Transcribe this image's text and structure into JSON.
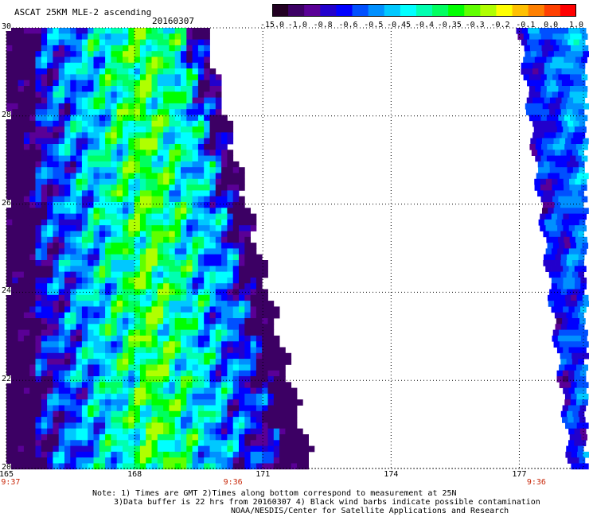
{
  "header": {
    "title": "ASCAT 25KM MLE-2 ascending",
    "date": "20160307"
  },
  "colorbar": {
    "labels": [
      "-15.0",
      "-1.0",
      "-0.8",
      "-0.6",
      "-0.5",
      "-0.45",
      "-0.4",
      "-0.35",
      "-0.3",
      "-0.2",
      "-0.1",
      "0.0",
      "1.0"
    ],
    "colors": [
      "#220022",
      "#3c0064",
      "#5a0096",
      "#2200cc",
      "#0000ff",
      "#0050ff",
      "#0090ff",
      "#00c8ff",
      "#00ffff",
      "#00ffb0",
      "#00ff60",
      "#00ff00",
      "#60ff00",
      "#b0ff00",
      "#ffff00",
      "#ffc000",
      "#ff8000",
      "#ff4000",
      "#ff0000"
    ]
  },
  "axes": {
    "lat_labels": [
      "30",
      "28",
      "26",
      "24",
      "22",
      "20"
    ],
    "lat_values": [
      30,
      28,
      26,
      24,
      22,
      20
    ],
    "lon_labels": [
      "165",
      "168",
      "171",
      "174",
      "177"
    ],
    "lon_values": [
      165,
      168,
      171,
      174,
      177
    ],
    "lon_range": [
      165,
      178.5
    ],
    "lat_range": [
      20,
      30
    ]
  },
  "times": [
    {
      "text": "9:37",
      "lon": 165.1
    },
    {
      "text": "9:36",
      "lon": 170.3
    },
    {
      "text": "9:36",
      "lon": 177.4
    }
  ],
  "notes": {
    "line1": "Note: 1) Times are GMT 2)Times along bottom correspond to measurement at 25N",
    "line2": "3)Data buffer is 22 hrs from 20160307 4) Black wind barbs indicate possible contamination",
    "line3": "NOAA/NESDIS/Center for Satellite Applications and Research"
  },
  "swaths": {
    "left": {
      "west_lon": 165.0,
      "east_lon_north": 169.6,
      "east_lon_south": 172.1
    },
    "right": {
      "west_lon_north": 177.0,
      "west_lon_south": 178.2,
      "east_lon": 178.5
    }
  }
}
